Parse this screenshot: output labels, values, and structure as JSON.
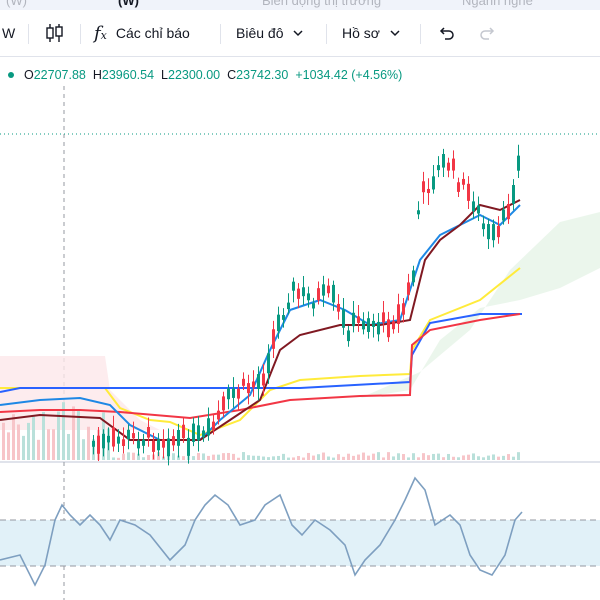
{
  "tabs": [
    {
      "label": "(W)",
      "active": false
    },
    {
      "label": "(W)",
      "active": true
    },
    {
      "label": "Biến động thị trường",
      "active": false
    },
    {
      "label": "Ngành nghề",
      "active": false
    }
  ],
  "toolbar": {
    "interval_label": "W",
    "indicators_label": "Các chỉ báo",
    "chart_label": "Biêu đô",
    "profile_label": "Hồ sơ"
  },
  "legend": {
    "open_key": "O",
    "open": "22707.88",
    "high_key": "H",
    "high": "23960.54",
    "low_key": "L",
    "low": "22300.00",
    "close_key": "C",
    "close": "23742.30",
    "change": "+1034.42 (+4.56%)"
  },
  "colors": {
    "up": "#089981",
    "down": "#f23645",
    "conversion": "#1e88e5",
    "base": "#801922",
    "lead_a": "#ffeb3b",
    "lead_b": "#2962ff",
    "lagging": "#f23645",
    "rsi": "#7e9fc0",
    "rsi_band": "#e1f1f8"
  },
  "icons": {
    "candle": "candles-icon",
    "fx": "fx-icon",
    "undo": "undo-icon",
    "redo": "redo-icon"
  }
}
